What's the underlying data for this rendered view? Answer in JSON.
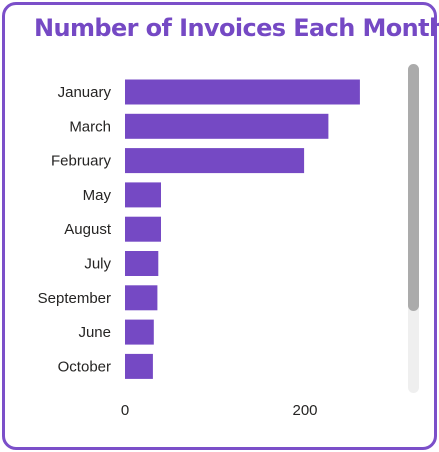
{
  "title": "Number of Invoices Each Month",
  "colors": {
    "accent": "#7549C4",
    "bar": "#7549C4",
    "border": "#7B4FC9",
    "text": "#252423",
    "scrollbar_thumb": "#ABABAB",
    "scrollbar_track": "#EFEFEF"
  },
  "scrollbar": {
    "visible_fraction": 0.75,
    "position": 0
  },
  "chart_data": {
    "type": "bar",
    "orientation": "horizontal",
    "title": "Number of Invoices Each Month",
    "categories": [
      "January",
      "March",
      "February",
      "May",
      "August",
      "July",
      "September",
      "June",
      "October"
    ],
    "values": [
      261,
      226,
      199,
      40,
      40,
      37,
      36,
      32,
      31
    ],
    "xlim": [
      0,
      300
    ],
    "x_ticks": [
      "0",
      "200"
    ],
    "xlabel": "",
    "ylabel": "",
    "grid": false,
    "legend": "none"
  }
}
